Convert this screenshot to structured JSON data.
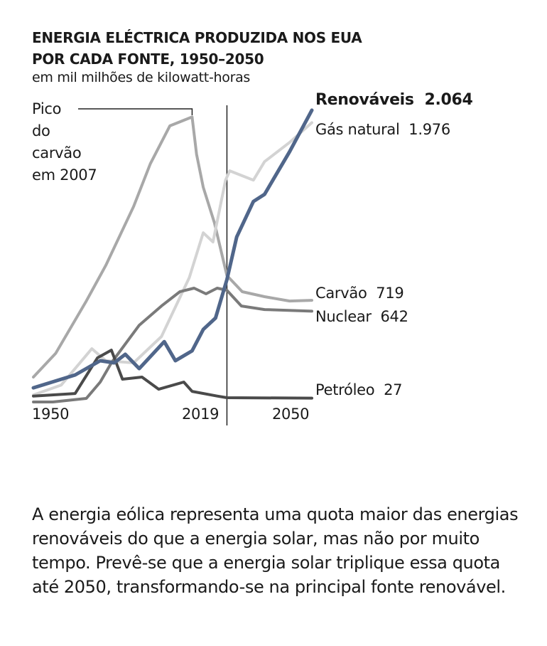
{
  "chart_data": {
    "type": "line",
    "title": "ENERGIA ELÉCTRICA PRODUZIDA NOS EUA POR CADA FONTE, 1950–2050",
    "title_lines": [
      "ENERGIA ELÉCTRICA PRODUZIDA NOS EUA",
      "POR CADA FONTE, 1950–2050"
    ],
    "subtitle": "em mil milhões de kilowatt-horas",
    "xlim": [
      1950,
      2050
    ],
    "ylim": [
      0,
      2100
    ],
    "x_ticks": [
      "1950",
      "2019",
      "2050"
    ],
    "divider_year": 2019.5,
    "grid": false,
    "annotation": {
      "text_lines": [
        "Pico",
        "do",
        "carvão",
        "em 2007"
      ],
      "year": 2007
    },
    "series": [
      {
        "name": "Carvão",
        "end_label": "719",
        "color": "#a8a8a8",
        "points": [
          [
            1950,
            176
          ],
          [
            1958,
            344
          ],
          [
            1969,
            714
          ],
          [
            1976,
            966
          ],
          [
            1986,
            1383
          ],
          [
            1992,
            1685
          ],
          [
            1999,
            1953
          ],
          [
            2007,
            2016
          ],
          [
            2008.6,
            1752
          ],
          [
            2011,
            1519
          ],
          [
            2015,
            1268
          ],
          [
            2019.5,
            895
          ],
          [
            2025,
            780
          ],
          [
            2033,
            745
          ],
          [
            2042,
            714
          ],
          [
            2050,
            719
          ]
        ]
      },
      {
        "name": "Gás natural",
        "end_label": "1.976",
        "color": "#d3d3d3",
        "points": [
          [
            1950,
            50
          ],
          [
            1960,
            120
          ],
          [
            1971,
            377
          ],
          [
            1976,
            292
          ],
          [
            1986,
            277
          ],
          [
            1996,
            463
          ],
          [
            2006,
            880
          ],
          [
            2011,
            1197
          ],
          [
            2014.5,
            1132
          ],
          [
            2019,
            1569
          ],
          [
            2020.5,
            1635
          ],
          [
            2029,
            1569
          ],
          [
            2033,
            1700
          ],
          [
            2042,
            1836
          ],
          [
            2050,
            1976
          ]
        ]
      },
      {
        "name": "Nuclear",
        "end_label": "642",
        "color": "#7a7a7a",
        "points": [
          [
            1950,
            0
          ],
          [
            1957,
            0
          ],
          [
            1969,
            25
          ],
          [
            1974,
            141
          ],
          [
            1978,
            277
          ],
          [
            1988,
            543
          ],
          [
            1996,
            679
          ],
          [
            2002.6,
            780
          ],
          [
            2007.7,
            805
          ],
          [
            2012,
            765
          ],
          [
            2016,
            805
          ],
          [
            2019.5,
            790
          ],
          [
            2024.7,
            679
          ],
          [
            2033,
            654
          ],
          [
            2050,
            642
          ]
        ]
      },
      {
        "name": "Petróleo",
        "end_label": "27",
        "color": "#4a4a4a",
        "points": [
          [
            1950,
            42
          ],
          [
            1965,
            60
          ],
          [
            1973,
            312
          ],
          [
            1978,
            367
          ],
          [
            1982,
            161
          ],
          [
            1989,
            176
          ],
          [
            1995,
            90
          ],
          [
            2004,
            141
          ],
          [
            2007,
            75
          ],
          [
            2016,
            42
          ],
          [
            2019.5,
            30
          ],
          [
            2050,
            27
          ]
        ]
      },
      {
        "name": "Renováveis",
        "end_label": "2.064",
        "color": "#50668a",
        "highlight": true,
        "points": [
          [
            1950,
            100
          ],
          [
            1965,
            191
          ],
          [
            1974,
            292
          ],
          [
            1979,
            277
          ],
          [
            1983,
            337
          ],
          [
            1988,
            236
          ],
          [
            1997,
            427
          ],
          [
            2001,
            292
          ],
          [
            2007,
            362
          ],
          [
            2011,
            513
          ],
          [
            2015.4,
            594
          ],
          [
            2019.5,
            865
          ],
          [
            2023,
            1167
          ],
          [
            2029,
            1418
          ],
          [
            2033,
            1469
          ],
          [
            2042,
            1770
          ],
          [
            2050,
            2064
          ]
        ]
      }
    ]
  },
  "body_text": "A energia eólica representa uma quota maior das energias renováveis do que a energia solar, mas não por muito tempo. Prevê-se que a energia solar triplique essa quota até 2050, transformando-se na principal fonte renovável."
}
